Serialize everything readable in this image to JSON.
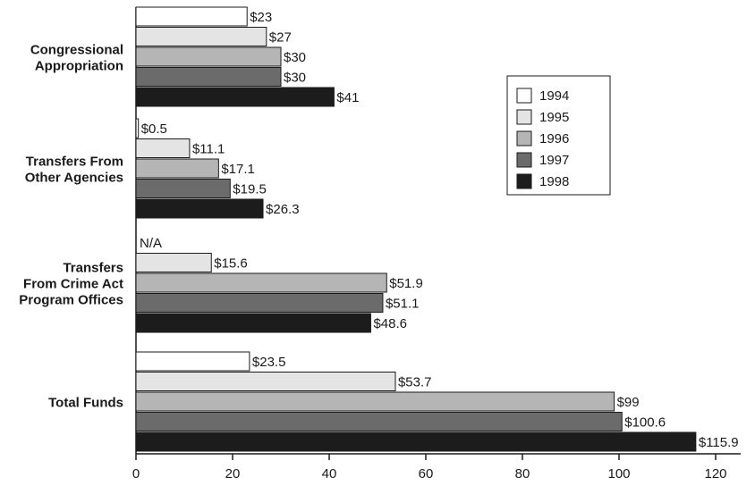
{
  "chart_data": {
    "type": "bar",
    "orientation": "horizontal",
    "title": "",
    "xlabel": "",
    "ylabel": "",
    "categories": [
      [
        "Congressional",
        "Appropriation"
      ],
      [
        "Transfers From",
        "Other Agencies"
      ],
      [
        "Transfers",
        "From Crime Act",
        "Program Offices"
      ],
      [
        "Total Funds"
      ]
    ],
    "series": [
      {
        "name": "1994",
        "color": "#ffffff",
        "values": [
          23,
          0.5,
          null,
          23.5
        ],
        "labels": [
          "$23",
          "$0.5",
          "N/A",
          "$23.5"
        ]
      },
      {
        "name": "1995",
        "color": "#e4e4e4",
        "values": [
          27,
          11.1,
          15.6,
          53.7
        ],
        "labels": [
          "$27",
          "$11.1",
          "$15.6",
          "$53.7"
        ]
      },
      {
        "name": "1996",
        "color": "#b5b5b5",
        "values": [
          30,
          17.1,
          51.9,
          99
        ],
        "labels": [
          "$30",
          "$17.1",
          "$51.9",
          "$99"
        ]
      },
      {
        "name": "1997",
        "color": "#6b6b6b",
        "values": [
          30,
          19.5,
          51.1,
          100.6
        ],
        "labels": [
          "$30",
          "$19.5",
          "$51.1",
          "$100.6"
        ]
      },
      {
        "name": "1998",
        "color": "#1c1c1c",
        "values": [
          41,
          26.3,
          48.6,
          115.9
        ],
        "labels": [
          "$41",
          "$26.3",
          "$48.6",
          "$115.9"
        ]
      }
    ],
    "xlim": [
      0,
      126
    ],
    "xticks": [
      0,
      20,
      40,
      60,
      80,
      100,
      120
    ],
    "grid": false,
    "legend": {
      "placement": "top-right",
      "entries": [
        "1994",
        "1995",
        "1996",
        "1997",
        "1998"
      ]
    }
  }
}
